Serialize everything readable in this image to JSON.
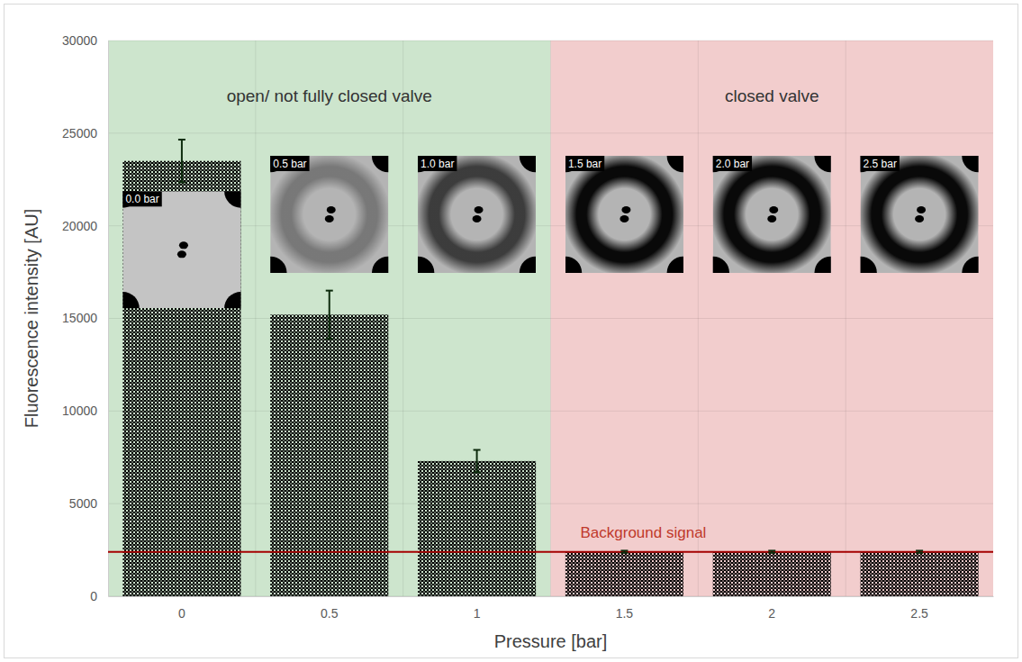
{
  "chart_data": {
    "type": "bar",
    "categories": [
      "0",
      "0.5",
      "1",
      "1.5",
      "2",
      "2.5"
    ],
    "values": [
      23500,
      15200,
      7300,
      2400,
      2400,
      2400
    ],
    "errors": [
      1150,
      1300,
      600,
      60,
      60,
      60
    ],
    "color": "#000000",
    "x_label": "Pressure [bar]",
    "y_label": "Fluorescence intensity [AU]",
    "ylim": [
      0,
      30000
    ],
    "yticks": [
      0,
      5000,
      10000,
      15000,
      20000,
      25000,
      30000
    ],
    "grid": true,
    "reference_line": {
      "value": 2400,
      "label": "Background signal",
      "color": "#a50000"
    },
    "regions": [
      {
        "label": "open/ not fully closed valve",
        "start": "0",
        "end": "1",
        "color": "#cde5cd"
      },
      {
        "label": "closed valve",
        "start": "1.5",
        "end": "2.5",
        "color": "#f2cdcd"
      }
    ],
    "insets": [
      "0.0 bar",
      "0.5 bar",
      "1.0 bar",
      "1.5 bar",
      "2.0 bar",
      "2.5 bar"
    ]
  }
}
